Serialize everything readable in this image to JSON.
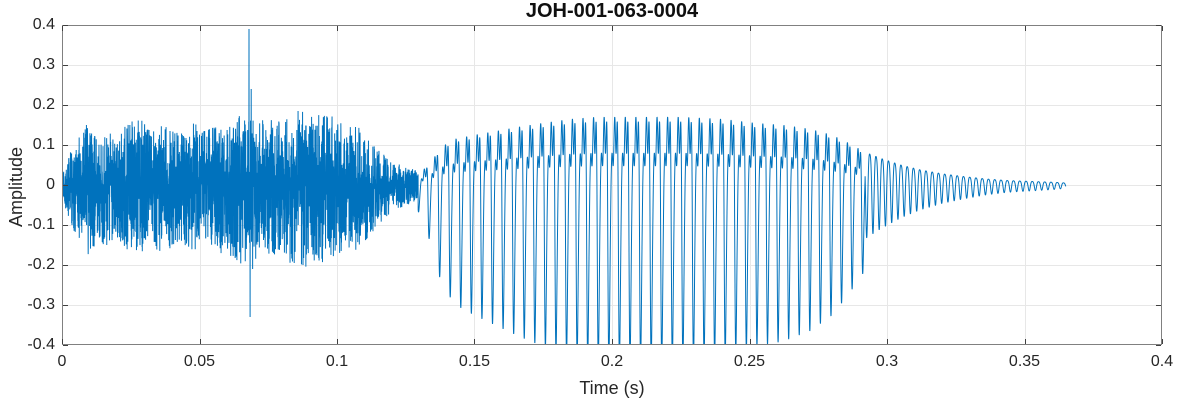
{
  "figure": {
    "title": "JOH-001-063-0004",
    "xlabel": "Time (s)",
    "ylabel": "Amplitude"
  },
  "chart_data": {
    "type": "line",
    "title": "JOH-001-063-0004",
    "xlabel": "Time (s)",
    "ylabel": "Amplitude",
    "xlim": [
      0,
      0.4
    ],
    "ylim": [
      -0.4,
      0.4
    ],
    "xticks": [
      0,
      0.05,
      0.1,
      0.15,
      0.2,
      0.25,
      0.3,
      0.35,
      0.4
    ],
    "xtick_labels": [
      "0",
      "0.05",
      "0.1",
      "0.15",
      "0.2",
      "0.25",
      "0.3",
      "0.35",
      "0.4"
    ],
    "yticks": [
      -0.4,
      -0.3,
      -0.2,
      -0.1,
      0,
      0.1,
      0.2,
      0.3,
      0.4
    ],
    "ytick_labels": [
      "-0.4",
      "-0.3",
      "-0.2",
      "-0.1",
      "0",
      "0.1",
      "0.2",
      "0.3",
      "0.4"
    ],
    "grid": true,
    "legend": "none",
    "colors": {
      "line": "#0072BD",
      "grid": "#e7e7e7",
      "box": "#808080",
      "tick": "#404040",
      "tick_text": "#262626",
      "title_text": "#0f0f0f",
      "background": "#ffffff"
    },
    "signal": {
      "sample_rate": 25000,
      "end_time": 0.365,
      "segments": [
        {
          "type": "noise",
          "t0": 0.0,
          "t1": 0.1295,
          "sharpness": 1.65,
          "neg_scale": 1.12,
          "envelope": [
            [
              0.0,
              0.03
            ],
            [
              0.002,
              0.07
            ],
            [
              0.004,
              0.1
            ],
            [
              0.007,
              0.13
            ],
            [
              0.01,
              0.165
            ],
            [
              0.013,
              0.12
            ],
            [
              0.016,
              0.14
            ],
            [
              0.02,
              0.125
            ],
            [
              0.024,
              0.155
            ],
            [
              0.028,
              0.17
            ],
            [
              0.032,
              0.135
            ],
            [
              0.036,
              0.15
            ],
            [
              0.04,
              0.14
            ],
            [
              0.044,
              0.13
            ],
            [
              0.048,
              0.155
            ],
            [
              0.052,
              0.135
            ],
            [
              0.056,
              0.15
            ],
            [
              0.06,
              0.16
            ],
            [
              0.064,
              0.175
            ],
            [
              0.068,
              0.175
            ],
            [
              0.072,
              0.16
            ],
            [
              0.076,
              0.17
            ],
            [
              0.08,
              0.155
            ],
            [
              0.084,
              0.185
            ],
            [
              0.088,
              0.19
            ],
            [
              0.092,
              0.175
            ],
            [
              0.096,
              0.19
            ],
            [
              0.1,
              0.16
            ],
            [
              0.104,
              0.145
            ],
            [
              0.108,
              0.15
            ],
            [
              0.112,
              0.11
            ],
            [
              0.116,
              0.085
            ],
            [
              0.12,
              0.06
            ],
            [
              0.124,
              0.048
            ],
            [
              0.1295,
              0.035
            ]
          ]
        },
        {
          "type": "tone",
          "t0": 0.1295,
          "t1": 0.292,
          "f": 260,
          "neg_scale": 1.3,
          "harmonics": [
            [
              1,
              1.0,
              0.0
            ],
            [
              2,
              0.55,
              2.0
            ],
            [
              3,
              0.35,
              3.8
            ],
            [
              4,
              0.18,
              1.0
            ]
          ],
          "envelope": [
            [
              0.1295,
              0.025
            ],
            [
              0.134,
              0.055
            ],
            [
              0.138,
              0.095
            ],
            [
              0.143,
              0.115
            ],
            [
              0.15,
              0.125
            ],
            [
              0.158,
              0.135
            ],
            [
              0.166,
              0.145
            ],
            [
              0.175,
              0.155
            ],
            [
              0.185,
              0.165
            ],
            [
              0.195,
              0.17
            ],
            [
              0.21,
              0.17
            ],
            [
              0.225,
              0.17
            ],
            [
              0.24,
              0.165
            ],
            [
              0.252,
              0.155
            ],
            [
              0.262,
              0.15
            ],
            [
              0.272,
              0.14
            ],
            [
              0.28,
              0.125
            ],
            [
              0.286,
              0.105
            ],
            [
              0.292,
              0.082
            ]
          ]
        },
        {
          "type": "tone",
          "t0": 0.292,
          "t1": 0.365,
          "f": 440,
          "neg_scale": 1.1,
          "harmonics": [
            [
              1,
              1.0,
              0.0
            ],
            [
              2,
              0.2,
              1.5
            ]
          ],
          "envelope": [
            [
              0.292,
              0.082
            ],
            [
              0.298,
              0.066
            ],
            [
              0.305,
              0.05
            ],
            [
              0.312,
              0.038
            ],
            [
              0.32,
              0.028
            ],
            [
              0.328,
              0.021
            ],
            [
              0.336,
              0.015
            ],
            [
              0.344,
              0.011
            ],
            [
              0.352,
              0.009
            ],
            [
              0.36,
              0.007
            ],
            [
              0.365,
              0.005
            ]
          ]
        }
      ],
      "spikes": [
        [
          0.068,
          0.39
        ],
        [
          0.0684,
          -0.33
        ],
        [
          0.0688,
          0.24
        ],
        [
          0.0693,
          -0.21
        ]
      ]
    }
  }
}
